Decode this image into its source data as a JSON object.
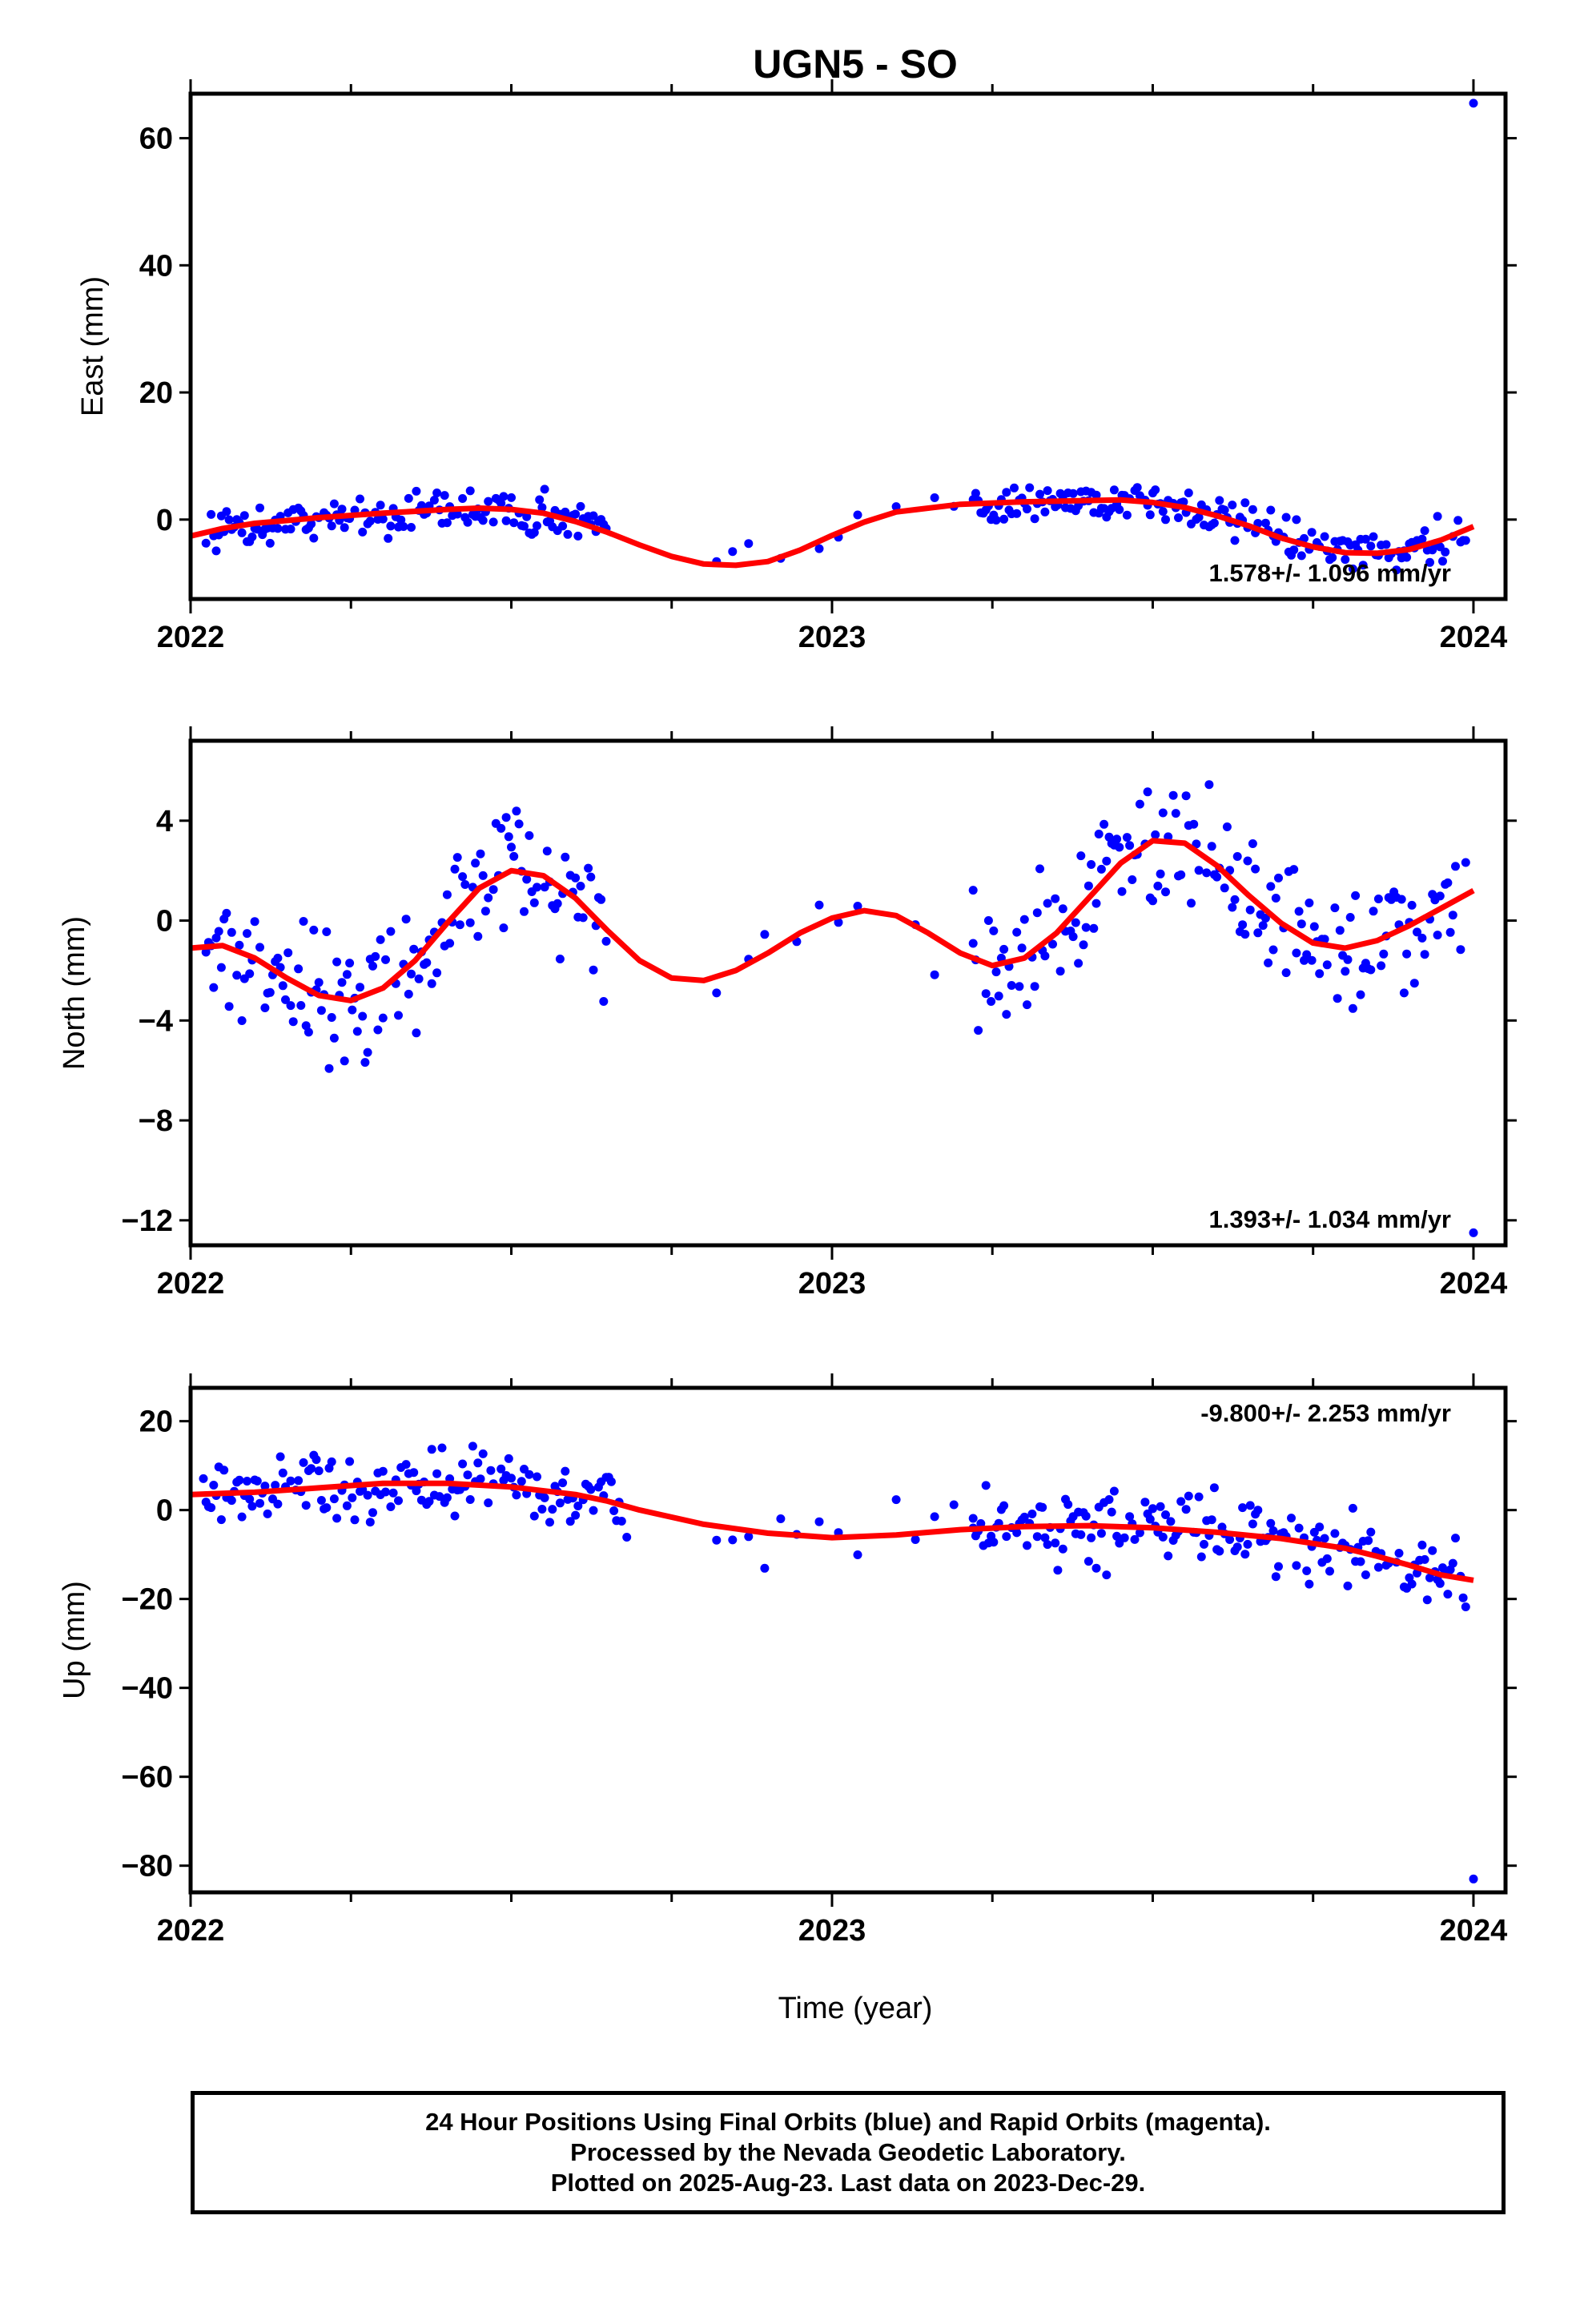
{
  "title": "UGN5 - SO",
  "xlabel": "Time (year)",
  "footer": [
    "24 Hour Positions Using Final Orbits (blue) and Rapid Orbits (magenta).",
    "Processed by the Nevada Geodetic Laboratory.",
    "Plotted on 2025-Aug-23. Last data on 2023-Dec-29."
  ],
  "colors": {
    "points": "#0000ff",
    "fit": "#ff0000",
    "axes": "#000000"
  },
  "chart_data": [
    {
      "type": "scatter",
      "ylabel": "East (mm)",
      "rate": "1.578+/- 1.096 mm/yr",
      "xlim": [
        2022.0,
        2024.05
      ],
      "ylim": [
        -12.5,
        67
      ],
      "xticks": [
        2022,
        2023,
        2024
      ],
      "yticks": [
        0,
        20,
        40,
        60
      ],
      "outliers": [
        {
          "x": 2024.0,
          "y": 65.5
        }
      ],
      "fit": [
        [
          2022.0,
          -2.6
        ],
        [
          2022.05,
          -1.4
        ],
        [
          2022.1,
          -0.6
        ],
        [
          2022.2,
          0.3
        ],
        [
          2022.3,
          1.0
        ],
        [
          2022.4,
          1.6
        ],
        [
          2022.45,
          1.8
        ],
        [
          2022.5,
          1.6
        ],
        [
          2022.55,
          1.0
        ],
        [
          2022.6,
          -0.3
        ],
        [
          2022.65,
          -2.0
        ],
        [
          2022.7,
          -4.0
        ],
        [
          2022.75,
          -5.8
        ],
        [
          2022.8,
          -7.0
        ],
        [
          2022.85,
          -7.2
        ],
        [
          2022.9,
          -6.6
        ],
        [
          2022.95,
          -4.8
        ],
        [
          2023.0,
          -2.5
        ],
        [
          2023.05,
          -0.4
        ],
        [
          2023.1,
          1.2
        ],
        [
          2023.2,
          2.4
        ],
        [
          2023.3,
          2.8
        ],
        [
          2023.4,
          3.0
        ],
        [
          2023.45,
          3.1
        ],
        [
          2023.5,
          2.7
        ],
        [
          2023.55,
          1.9
        ],
        [
          2023.6,
          0.6
        ],
        [
          2023.65,
          -1.0
        ],
        [
          2023.7,
          -2.9
        ],
        [
          2023.75,
          -4.3
        ],
        [
          2023.8,
          -5.2
        ],
        [
          2023.85,
          -5.3
        ],
        [
          2023.9,
          -4.7
        ],
        [
          2023.95,
          -3.2
        ],
        [
          2024.0,
          -1.1
        ]
      ],
      "scatter_segments": [
        {
          "from": 2022.02,
          "to": 2022.65,
          "step": 0.004,
          "jitter": 2.4
        },
        {
          "from": 2022.82,
          "to": 2022.95,
          "step": 0.025,
          "jitter": 2.2
        },
        {
          "from": 2022.98,
          "to": 2023.06,
          "step": 0.03,
          "jitter": 1.5
        },
        {
          "from": 2023.1,
          "to": 2023.22,
          "step": 0.03,
          "jitter": 1.4
        },
        {
          "from": 2023.22,
          "to": 2023.99,
          "step": 0.004,
          "jitter": 2.2
        }
      ]
    },
    {
      "type": "scatter",
      "ylabel": "North (mm)",
      "rate": "1.393+/- 1.034 mm/yr",
      "xlim": [
        2022.0,
        2024.05
      ],
      "ylim": [
        -13.0,
        7.2
      ],
      "xticks": [
        2022,
        2023,
        2024
      ],
      "yticks": [
        4,
        0,
        -4,
        -8,
        -12
      ],
      "outliers": [
        {
          "x": 2024.0,
          "y": -12.5
        }
      ],
      "fit": [
        [
          2022.0,
          -1.1
        ],
        [
          2022.05,
          -1.0
        ],
        [
          2022.1,
          -1.5
        ],
        [
          2022.15,
          -2.3
        ],
        [
          2022.2,
          -3.0
        ],
        [
          2022.25,
          -3.2
        ],
        [
          2022.3,
          -2.7
        ],
        [
          2022.35,
          -1.6
        ],
        [
          2022.4,
          -0.1
        ],
        [
          2022.45,
          1.3
        ],
        [
          2022.5,
          2.0
        ],
        [
          2022.55,
          1.8
        ],
        [
          2022.6,
          0.9
        ],
        [
          2022.65,
          -0.4
        ],
        [
          2022.7,
          -1.6
        ],
        [
          2022.75,
          -2.3
        ],
        [
          2022.8,
          -2.4
        ],
        [
          2022.85,
          -2.0
        ],
        [
          2022.9,
          -1.3
        ],
        [
          2022.95,
          -0.5
        ],
        [
          2023.0,
          0.1
        ],
        [
          2023.05,
          0.4
        ],
        [
          2023.1,
          0.2
        ],
        [
          2023.15,
          -0.5
        ],
        [
          2023.2,
          -1.3
        ],
        [
          2023.25,
          -1.8
        ],
        [
          2023.3,
          -1.5
        ],
        [
          2023.35,
          -0.5
        ],
        [
          2023.4,
          0.9
        ],
        [
          2023.45,
          2.3
        ],
        [
          2023.5,
          3.2
        ],
        [
          2023.55,
          3.1
        ],
        [
          2023.6,
          2.2
        ],
        [
          2023.65,
          1.0
        ],
        [
          2023.7,
          -0.1
        ],
        [
          2023.75,
          -0.9
        ],
        [
          2023.8,
          -1.1
        ],
        [
          2023.85,
          -0.8
        ],
        [
          2023.9,
          -0.2
        ],
        [
          2023.95,
          0.5
        ],
        [
          2024.0,
          1.2
        ]
      ],
      "scatter_segments": [
        {
          "from": 2022.02,
          "to": 2022.65,
          "step": 0.004,
          "jitter": 1.8
        },
        {
          "from": 2022.82,
          "to": 2022.95,
          "step": 0.025,
          "jitter": 1.6
        },
        {
          "from": 2022.98,
          "to": 2023.06,
          "step": 0.03,
          "jitter": 1.2
        },
        {
          "from": 2023.1,
          "to": 2023.22,
          "step": 0.03,
          "jitter": 1.2
        },
        {
          "from": 2023.22,
          "to": 2023.99,
          "step": 0.004,
          "jitter": 1.9
        }
      ]
    },
    {
      "type": "scatter",
      "ylabel": "Up (mm)",
      "rate": "-9.800+/- 2.253 mm/yr",
      "xlim": [
        2022.0,
        2024.05
      ],
      "ylim": [
        -86,
        27.5
      ],
      "xticks": [
        2022,
        2023,
        2024
      ],
      "yticks": [
        20,
        0,
        -20,
        -40,
        -60,
        -80
      ],
      "outliers": [
        {
          "x": 2024.0,
          "y": -83
        }
      ],
      "fit": [
        [
          2022.0,
          3.5
        ],
        [
          2022.1,
          4.0
        ],
        [
          2022.2,
          5.0
        ],
        [
          2022.3,
          6.0
        ],
        [
          2022.4,
          6.0
        ],
        [
          2022.5,
          5.2
        ],
        [
          2022.6,
          3.5
        ],
        [
          2022.65,
          2.0
        ],
        [
          2022.7,
          0.0
        ],
        [
          2022.8,
          -3.2
        ],
        [
          2022.9,
          -5.2
        ],
        [
          2023.0,
          -6.2
        ],
        [
          2023.1,
          -5.6
        ],
        [
          2023.2,
          -4.4
        ],
        [
          2023.3,
          -3.7
        ],
        [
          2023.4,
          -3.5
        ],
        [
          2023.5,
          -4.0
        ],
        [
          2023.6,
          -5.0
        ],
        [
          2023.7,
          -6.4
        ],
        [
          2023.8,
          -8.6
        ],
        [
          2023.85,
          -10.4
        ],
        [
          2023.9,
          -12.4
        ],
        [
          2023.95,
          -14.6
        ],
        [
          2024.0,
          -15.8
        ]
      ],
      "scatter_segments": [
        {
          "from": 2022.02,
          "to": 2022.68,
          "step": 0.004,
          "jitter": 5.5
        },
        {
          "from": 2022.82,
          "to": 2022.95,
          "step": 0.025,
          "jitter": 5.0
        },
        {
          "from": 2022.98,
          "to": 2023.06,
          "step": 0.03,
          "jitter": 5.0
        },
        {
          "from": 2023.1,
          "to": 2023.22,
          "step": 0.03,
          "jitter": 5.0
        },
        {
          "from": 2023.22,
          "to": 2023.99,
          "step": 0.004,
          "jitter": 6.0
        }
      ]
    }
  ]
}
